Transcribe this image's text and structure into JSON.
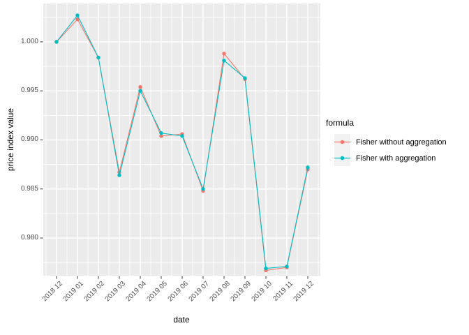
{
  "figure": {
    "panel_bg": "#EBEBEB",
    "grid_color": "#FFFFFF",
    "tick_label_color": "#4D4D4D",
    "tick_mark_color": "#333333",
    "legend_key_bg": "#F2F2F2"
  },
  "legend": {
    "title": "formula"
  },
  "chart_data": {
    "type": "line",
    "title": "",
    "xlabel": "date",
    "ylabel": "price index value",
    "legend_title": "formula",
    "legend_position": "right",
    "grid": true,
    "categories": [
      "2018 12",
      "2019 01",
      "2019 02",
      "2019 03",
      "2019 04",
      "2019 05",
      "2019 06",
      "2019 07",
      "2019 08",
      "2019 09",
      "2019 10",
      "2019 11",
      "2019 12"
    ],
    "series": [
      {
        "name": "Fisher without aggregation",
        "color": "#F8766D",
        "values": [
          1.0,
          1.0023,
          0.9984,
          0.9867,
          0.9954,
          0.9904,
          0.9906,
          0.9848,
          0.9988,
          0.9962,
          0.9767,
          0.977,
          0.987
        ]
      },
      {
        "name": "Fisher with aggregation",
        "color": "#00BFC4",
        "values": [
          1.0,
          1.0027,
          0.9984,
          0.9864,
          0.995,
          0.9907,
          0.9904,
          0.985,
          0.9981,
          0.9963,
          0.9769,
          0.9771,
          0.9872
        ]
      }
    ],
    "yticks": [
      1.0,
      0.995,
      0.99,
      0.985,
      0.98
    ],
    "ytick_labels": [
      "1.000",
      "0.995",
      "0.990",
      "0.985",
      "0.980"
    ],
    "ylim": [
      0.97616,
      1.00391
    ],
    "minor_grid_step": 0.0025
  }
}
